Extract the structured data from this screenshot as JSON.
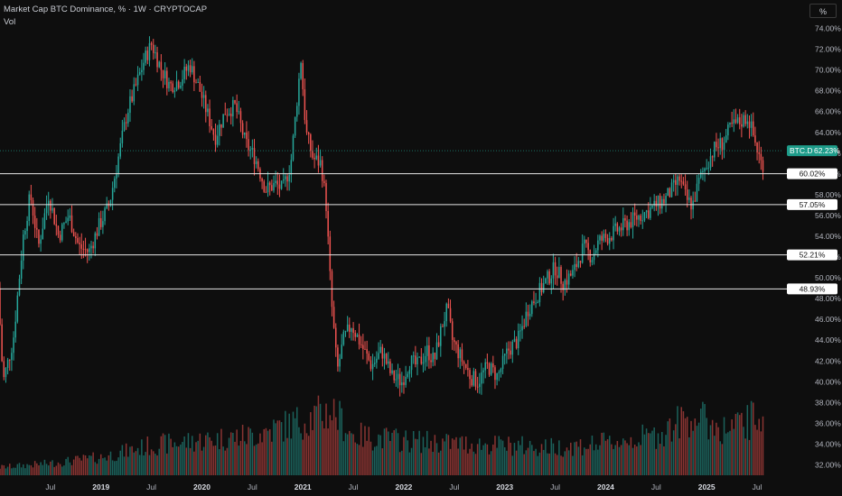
{
  "legend": {
    "title": "Market Cap BTC Dominance, % · 1W · CRYPTOCAP",
    "volume_label": "Vol"
  },
  "unit_button": "%",
  "colors": {
    "up": "#26a69a",
    "down": "#ef5350",
    "bg": "#0e0e0e",
    "level": "#e6e6e6",
    "current": "#1e9c8a"
  },
  "chart_data": {
    "type": "candlestick",
    "title": "Market Cap BTC Dominance, % · 1W · CRYPTOCAP",
    "ylim": [
      31,
      75
    ],
    "y_ticks": [
      "32.00%",
      "34.00%",
      "36.00%",
      "38.00%",
      "40.00%",
      "42.00%",
      "44.00%",
      "46.00%",
      "48.00%",
      "50.00%",
      "52.00%",
      "54.00%",
      "56.00%",
      "58.00%",
      "60.00%",
      "62.00%",
      "64.00%",
      "66.00%",
      "68.00%",
      "70.00%",
      "72.00%",
      "74.00%"
    ],
    "x_ticks": [
      {
        "label": "Jul",
        "t": 2018.5
      },
      {
        "label": "2019",
        "t": 2019.0,
        "year": true
      },
      {
        "label": "Jul",
        "t": 2019.5
      },
      {
        "label": "2020",
        "t": 2020.0,
        "year": true
      },
      {
        "label": "Jul",
        "t": 2020.5
      },
      {
        "label": "2021",
        "t": 2021.0,
        "year": true
      },
      {
        "label": "Jul",
        "t": 2021.5
      },
      {
        "label": "2022",
        "t": 2022.0,
        "year": true
      },
      {
        "label": "Jul",
        "t": 2022.5
      },
      {
        "label": "2023",
        "t": 2023.0,
        "year": true
      },
      {
        "label": "Jul",
        "t": 2023.5
      },
      {
        "label": "2024",
        "t": 2024.0,
        "year": true
      },
      {
        "label": "Jul",
        "t": 2024.5
      },
      {
        "label": "2025",
        "t": 2025.0,
        "year": true
      },
      {
        "label": "Jul",
        "t": 2025.5
      }
    ],
    "xlim": [
      2018.0,
      2025.75
    ],
    "price_path": [
      [
        2018.0,
        49.0
      ],
      [
        2018.05,
        40.0
      ],
      [
        2018.15,
        44.0
      ],
      [
        2018.25,
        54.0
      ],
      [
        2018.32,
        58.0
      ],
      [
        2018.4,
        53.0
      ],
      [
        2018.5,
        58.0
      ],
      [
        2018.6,
        54.0
      ],
      [
        2018.7,
        56.0
      ],
      [
        2018.8,
        53.0
      ],
      [
        2018.9,
        52.5
      ],
      [
        2019.0,
        55.0
      ],
      [
        2019.1,
        57.0
      ],
      [
        2019.2,
        62.0
      ],
      [
        2019.28,
        66.0
      ],
      [
        2019.35,
        68.0
      ],
      [
        2019.45,
        71.0
      ],
      [
        2019.52,
        72.5
      ],
      [
        2019.62,
        70.0
      ],
      [
        2019.7,
        68.5
      ],
      [
        2019.8,
        69.0
      ],
      [
        2019.9,
        70.5
      ],
      [
        2020.0,
        68.0
      ],
      [
        2020.1,
        65.0
      ],
      [
        2020.15,
        63.5
      ],
      [
        2020.25,
        66.0
      ],
      [
        2020.35,
        66.5
      ],
      [
        2020.45,
        63.0
      ],
      [
        2020.55,
        61.5
      ],
      [
        2020.65,
        58.5
      ],
      [
        2020.75,
        59.0
      ],
      [
        2020.82,
        58.5
      ],
      [
        2020.9,
        61.0
      ],
      [
        2020.97,
        68.0
      ],
      [
        2021.0,
        71.0
      ],
      [
        2021.05,
        64.0
      ],
      [
        2021.12,
        61.5
      ],
      [
        2021.2,
        61.0
      ],
      [
        2021.25,
        57.0
      ],
      [
        2021.3,
        48.0
      ],
      [
        2021.36,
        41.0
      ],
      [
        2021.42,
        44.0
      ],
      [
        2021.5,
        45.5
      ],
      [
        2021.6,
        43.5
      ],
      [
        2021.7,
        41.5
      ],
      [
        2021.8,
        43.0
      ],
      [
        2021.9,
        40.5
      ],
      [
        2022.0,
        40.0
      ],
      [
        2022.08,
        42.0
      ],
      [
        2022.15,
        41.5
      ],
      [
        2022.25,
        43.0
      ],
      [
        2022.32,
        42.0
      ],
      [
        2022.4,
        45.5
      ],
      [
        2022.45,
        47.0
      ],
      [
        2022.5,
        44.0
      ],
      [
        2022.6,
        42.0
      ],
      [
        2022.68,
        40.5
      ],
      [
        2022.75,
        40.0
      ],
      [
        2022.85,
        41.5
      ],
      [
        2022.95,
        40.5
      ],
      [
        2023.05,
        43.0
      ],
      [
        2023.15,
        44.0
      ],
      [
        2023.25,
        47.0
      ],
      [
        2023.35,
        48.5
      ],
      [
        2023.45,
        50.0
      ],
      [
        2023.52,
        51.0
      ],
      [
        2023.6,
        49.5
      ],
      [
        2023.7,
        50.5
      ],
      [
        2023.8,
        53.0
      ],
      [
        2023.88,
        52.0
      ],
      [
        2023.95,
        53.5
      ],
      [
        2024.05,
        54.0
      ],
      [
        2024.12,
        54.5
      ],
      [
        2024.2,
        55.0
      ],
      [
        2024.28,
        55.5
      ],
      [
        2024.36,
        56.0
      ],
      [
        2024.45,
        56.5
      ],
      [
        2024.52,
        57.0
      ],
      [
        2024.6,
        57.5
      ],
      [
        2024.68,
        58.5
      ],
      [
        2024.75,
        59.5
      ],
      [
        2024.82,
        57.5
      ],
      [
        2024.88,
        57.0
      ],
      [
        2024.95,
        59.5
      ],
      [
        2025.02,
        61.0
      ],
      [
        2025.1,
        62.5
      ],
      [
        2025.18,
        63.0
      ],
      [
        2025.26,
        64.5
      ],
      [
        2025.35,
        65.0
      ],
      [
        2025.43,
        65.5
      ],
      [
        2025.5,
        63.0
      ],
      [
        2025.56,
        61.0
      ]
    ],
    "horizontal_levels": [
      {
        "value": 60.02,
        "label": "60.02%"
      },
      {
        "value": 57.05,
        "label": "57.05%"
      },
      {
        "value": 52.21,
        "label": "52.21%"
      },
      {
        "value": 48.93,
        "label": "48.93%"
      }
    ],
    "current": {
      "symbol": "BTC.D",
      "value": 62.23,
      "label": "62.23%"
    },
    "volume_profile": [
      [
        2018.0,
        0.08
      ],
      [
        2018.5,
        0.12
      ],
      [
        2019.0,
        0.18
      ],
      [
        2019.5,
        0.3
      ],
      [
        2020.0,
        0.35
      ],
      [
        2020.5,
        0.4
      ],
      [
        2021.0,
        0.55
      ],
      [
        2021.3,
        0.65
      ],
      [
        2021.5,
        0.4
      ],
      [
        2022.0,
        0.35
      ],
      [
        2022.5,
        0.32
      ],
      [
        2023.0,
        0.3
      ],
      [
        2023.5,
        0.28
      ],
      [
        2024.0,
        0.32
      ],
      [
        2024.5,
        0.4
      ],
      [
        2024.85,
        0.6
      ],
      [
        2025.2,
        0.45
      ],
      [
        2025.5,
        0.58
      ],
      [
        2025.56,
        0.65
      ]
    ]
  }
}
